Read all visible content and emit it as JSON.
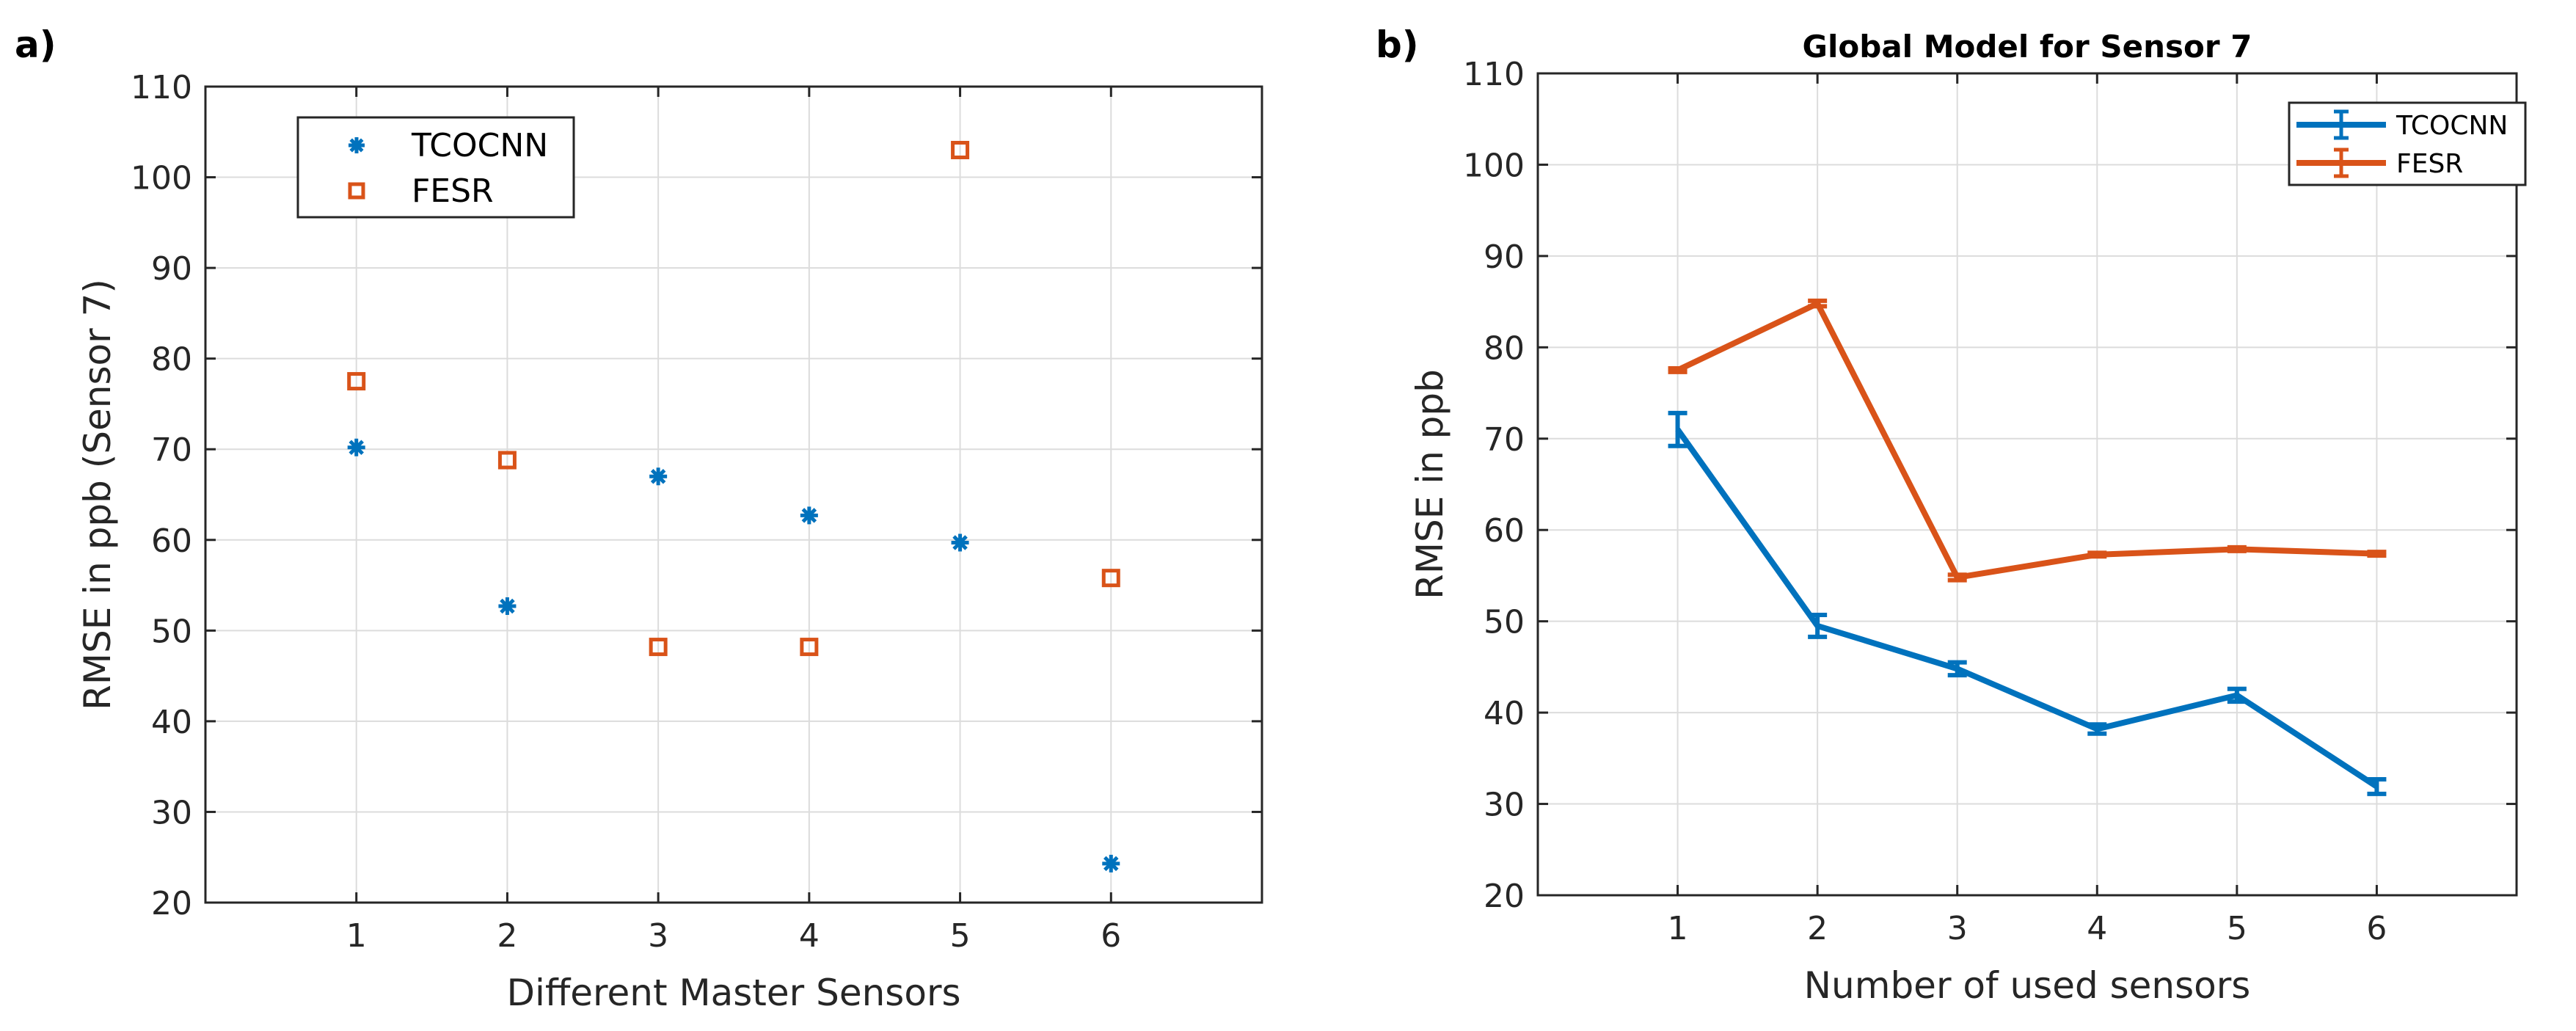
{
  "panel_labels": [
    "a)",
    "b)"
  ],
  "colors": {
    "tcocnn": "#0072BD",
    "fesr": "#D95319",
    "grid": "#DCDCDC",
    "axis": "#262626"
  },
  "chart_data": [
    {
      "type": "scatter",
      "panel": "a)",
      "title": "",
      "xlabel": "Different Master Sensors",
      "ylabel": "RMSE in ppb (Sensor 7)",
      "xlim": [
        0,
        7
      ],
      "ylim": [
        20,
        110
      ],
      "xticks": [
        1,
        2,
        3,
        4,
        5,
        6
      ],
      "yticks": [
        20,
        30,
        40,
        50,
        60,
        70,
        80,
        90,
        100,
        110
      ],
      "grid": true,
      "legend_position": "top-left",
      "series": [
        {
          "name": "TCOCNN",
          "marker": "asterisk",
          "color": "#0072BD",
          "x": [
            1,
            2,
            3,
            4,
            5,
            6
          ],
          "y": [
            70.2,
            52.7,
            67.0,
            62.7,
            59.7,
            24.3
          ]
        },
        {
          "name": "FESR",
          "marker": "square",
          "color": "#D95319",
          "x": [
            1,
            2,
            3,
            4,
            5,
            6
          ],
          "y": [
            77.5,
            68.8,
            48.2,
            48.2,
            103.0,
            55.8
          ]
        }
      ]
    },
    {
      "type": "line",
      "panel": "b)",
      "title": "Global Model for Sensor 7",
      "xlabel": "Number of used sensors",
      "ylabel": "RMSE in ppb",
      "xlim": [
        0,
        7
      ],
      "ylim": [
        20,
        110
      ],
      "xticks": [
        1,
        2,
        3,
        4,
        5,
        6
      ],
      "yticks": [
        20,
        30,
        40,
        50,
        60,
        70,
        80,
        90,
        100,
        110
      ],
      "grid": true,
      "legend_position": "top-right",
      "series": [
        {
          "name": "TCOCNN",
          "color": "#0072BD",
          "x": [
            1,
            2,
            3,
            4,
            5,
            6
          ],
          "y": [
            71.0,
            49.5,
            44.8,
            38.2,
            41.9,
            31.9
          ],
          "error": [
            1.8,
            1.2,
            0.7,
            0.5,
            0.7,
            0.8
          ]
        },
        {
          "name": "FESR",
          "color": "#D95319",
          "x": [
            1,
            2,
            3,
            4,
            5,
            6
          ],
          "y": [
            77.5,
            84.8,
            54.8,
            57.3,
            57.9,
            57.4
          ],
          "error": [
            0.2,
            0.3,
            0.3,
            0.2,
            0.2,
            0.2
          ]
        }
      ]
    }
  ]
}
